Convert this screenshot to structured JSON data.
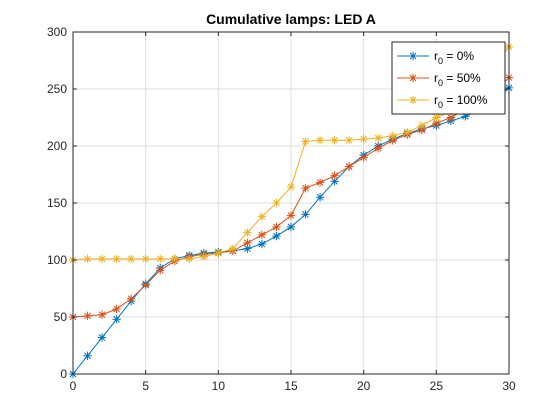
{
  "chart_data": {
    "type": "line",
    "title": "Cumulative lamps: LED A",
    "xlabel": "",
    "ylabel": "",
    "xlim": [
      0,
      30
    ],
    "ylim": [
      0,
      300
    ],
    "xticks": [
      0,
      5,
      10,
      15,
      20,
      25,
      30
    ],
    "yticks": [
      0,
      50,
      100,
      150,
      200,
      250,
      300
    ],
    "grid": true,
    "legend_position": "top-right",
    "marker": "asterisk",
    "x": [
      0,
      1,
      2,
      3,
      4,
      5,
      6,
      7,
      8,
      9,
      10,
      11,
      12,
      13,
      14,
      15,
      16,
      17,
      18,
      19,
      20,
      21,
      22,
      23,
      24,
      25,
      26,
      27,
      28,
      29,
      30
    ],
    "series": [
      {
        "name_base": "r",
        "name_sub": "0",
        "name_rest": " = 0%",
        "color": "#0072BD",
        "values": [
          0,
          16,
          32,
          48,
          64,
          79,
          93,
          101,
          104,
          106,
          107,
          108,
          110,
          114,
          121,
          129,
          140,
          155,
          169,
          182,
          192,
          200,
          206,
          211,
          215,
          218,
          222,
          226,
          232,
          240,
          251
        ]
      },
      {
        "name_base": "r",
        "name_sub": "0",
        "name_rest": " = 50%",
        "color": "#D95319",
        "values": [
          50,
          51,
          52,
          57,
          66,
          78,
          91,
          99,
          103,
          105,
          106,
          108,
          115,
          122,
          129,
          139,
          163,
          168,
          174,
          182,
          190,
          198,
          205,
          210,
          214,
          220,
          225,
          232,
          238,
          248,
          260
        ]
      },
      {
        "name_base": "r",
        "name_sub": "0",
        "name_rest": " = 100%",
        "color": "#EDB120",
        "values": [
          100,
          101,
          101,
          101,
          101,
          101,
          101,
          101,
          101,
          103,
          106,
          110,
          124,
          138,
          150,
          164,
          204,
          205,
          205,
          205,
          206,
          207,
          209,
          212,
          218,
          225,
          230,
          236,
          250,
          270,
          287
        ]
      }
    ]
  }
}
